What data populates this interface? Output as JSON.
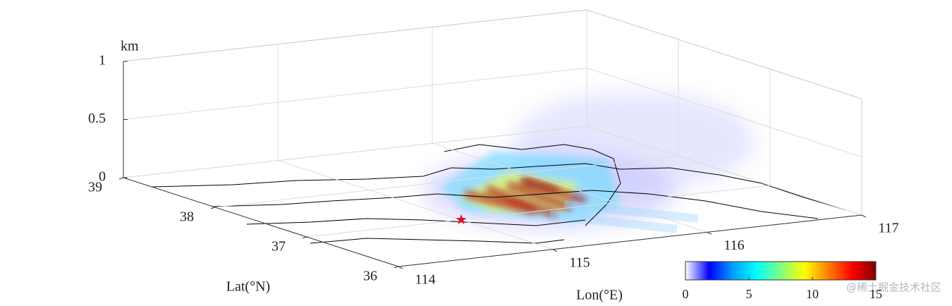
{
  "chart_data": {
    "type": "volume3d",
    "zlabel": "km",
    "xlabel": "Lon(°E)",
    "ylabel": "Lat(°N)",
    "xlim": [
      114,
      117
    ],
    "xticks": [
      114,
      115,
      116,
      117
    ],
    "ylim": [
      36,
      39
    ],
    "yticks": [
      36,
      37,
      38,
      39
    ],
    "zlim": [
      0,
      1
    ],
    "zticks": [
      0,
      0.5,
      1
    ],
    "grid": true,
    "marker": {
      "x": 115,
      "y": 37,
      "color": "#e0102a"
    },
    "colorbar": {
      "lim": [
        0,
        15
      ],
      "ticks": [
        0,
        5,
        10,
        15
      ],
      "colormap": [
        "#ffffff",
        "#0000ff",
        "#00a0ff",
        "#00ffff",
        "#80ff80",
        "#ffff00",
        "#ff8000",
        "#ff0000",
        "#800000"
      ]
    }
  },
  "watermark": "@稀土掘金技术社区"
}
